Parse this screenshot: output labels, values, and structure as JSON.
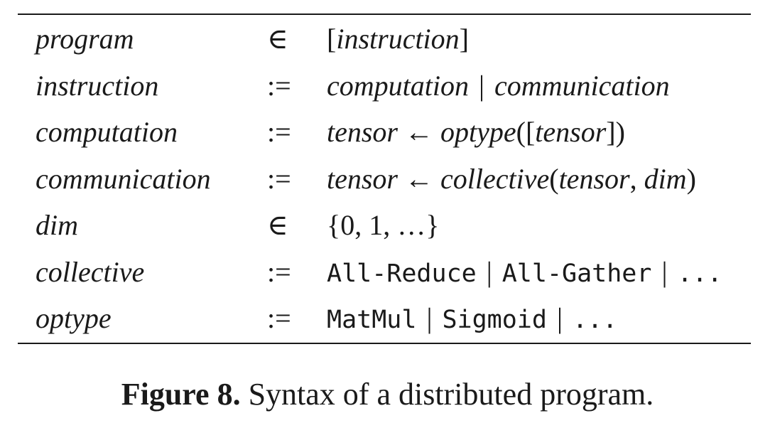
{
  "grammar": {
    "rows": [
      {
        "lhs": "program",
        "op": "∈",
        "rhs": {
          "open": "[",
          "term": "instruction",
          "close": "]"
        }
      },
      {
        "lhs": "instruction",
        "op": ":=",
        "rhs": {
          "left": "computation",
          "bar": "|",
          "right": "communication"
        }
      },
      {
        "lhs": "computation",
        "op": ":=",
        "rhs": {
          "target": "tensor",
          "arrow": "←",
          "fn": "optype",
          "open": "([",
          "arg": "tensor",
          "close": "])"
        }
      },
      {
        "lhs": "communication",
        "op": ":=",
        "rhs": {
          "target": "tensor",
          "arrow": "←",
          "fn": "collective",
          "open": "(",
          "arg1": "tensor",
          "comma": ",",
          "arg2": "dim",
          "close": ")"
        }
      },
      {
        "lhs": "dim",
        "op": "∈",
        "rhs": {
          "set": "{0, 1, …}"
        }
      },
      {
        "lhs": "collective",
        "op": ":=",
        "rhs": {
          "first": "All-Reduce",
          "bar1": "|",
          "second": "All-Gather",
          "bar2": "|",
          "rest": "..."
        }
      },
      {
        "lhs": "optype",
        "op": ":=",
        "rhs": {
          "first": "MatMul",
          "bar1": "|",
          "second": "Sigmoid",
          "bar2": "|",
          "rest": "..."
        }
      }
    ]
  },
  "caption": {
    "label": "Figure 8.",
    "text": "Syntax of a distributed program."
  }
}
